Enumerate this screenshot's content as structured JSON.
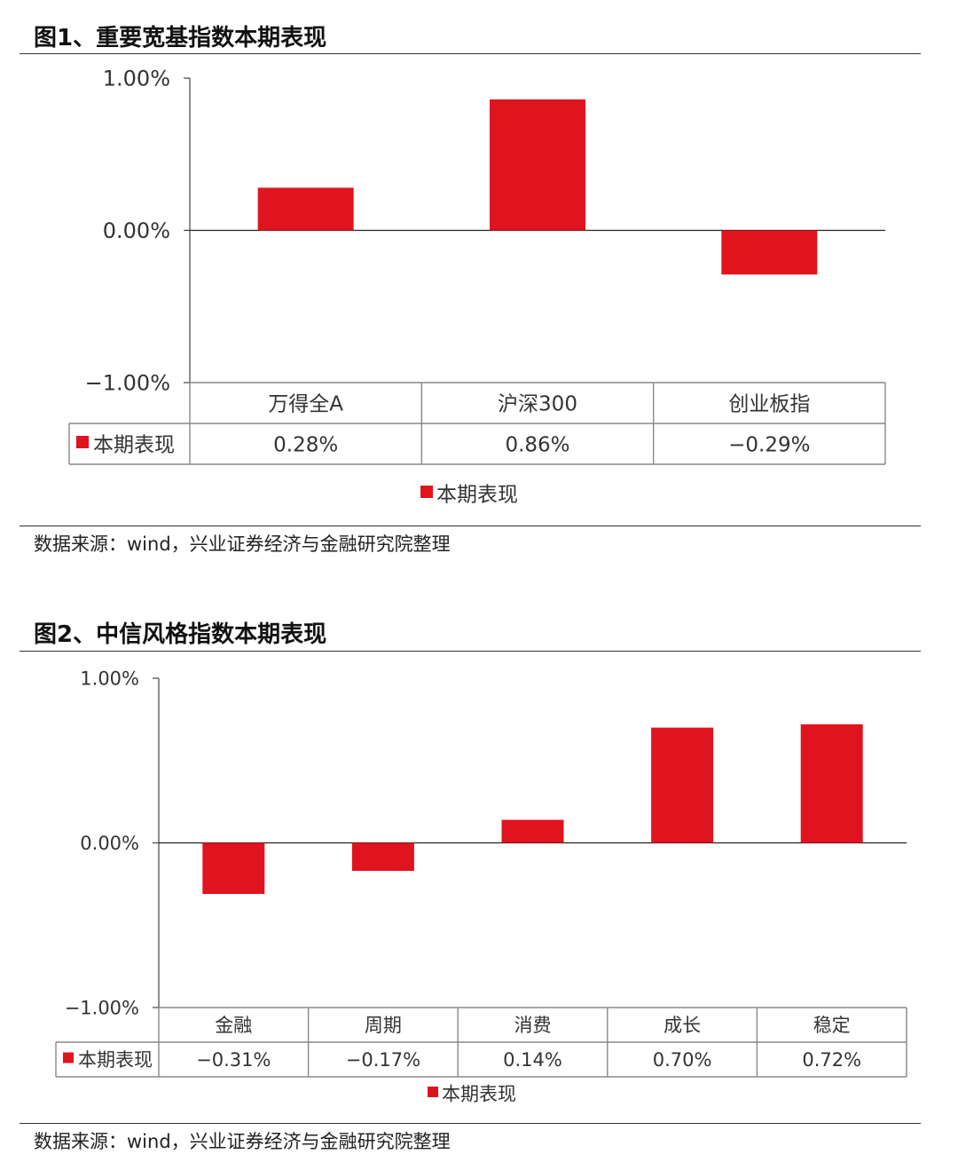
{
  "charts": [
    {
      "figure_title": "图1、重要宽基指数本期表现",
      "source": "数据来源：wind，兴业证券经济与金融研究院整理"
    },
    {
      "figure_title": "图2、中信风格指数本期表现",
      "source": "数据来源：wind，兴业证券经济与金融研究院整理"
    }
  ],
  "chart_data": [
    {
      "type": "bar",
      "title": "图1、重要宽基指数本期表现",
      "categories": [
        "万得全A",
        "沪深300",
        "创业板指"
      ],
      "series": [
        {
          "name": "本期表现",
          "values": [
            0.28,
            0.86,
            -0.29
          ],
          "labels": [
            "0.28%",
            "0.86%",
            "−0.29%"
          ]
        }
      ],
      "y_ticks": [
        "1.00%",
        "0.00%",
        "−1.00%"
      ],
      "ylim": [
        -1,
        1
      ],
      "unit": "%",
      "legend": "bottom-center",
      "grid": false,
      "color": "#e0141e",
      "data_table": true
    },
    {
      "type": "bar",
      "title": "图2、中信风格指数本期表现",
      "categories": [
        "金融",
        "周期",
        "消费",
        "成长",
        "稳定"
      ],
      "series": [
        {
          "name": "本期表现",
          "values": [
            -0.31,
            -0.17,
            0.14,
            0.7,
            0.72
          ],
          "labels": [
            "−0.31%",
            "−0.17%",
            "0.14%",
            "0.70%",
            "0.72%"
          ]
        }
      ],
      "y_ticks": [
        "1.00%",
        "0.00%",
        "−1.00%"
      ],
      "ylim": [
        -1,
        1
      ],
      "unit": "%",
      "legend": "bottom-center",
      "grid": false,
      "color": "#e0141e",
      "data_table": true
    }
  ]
}
